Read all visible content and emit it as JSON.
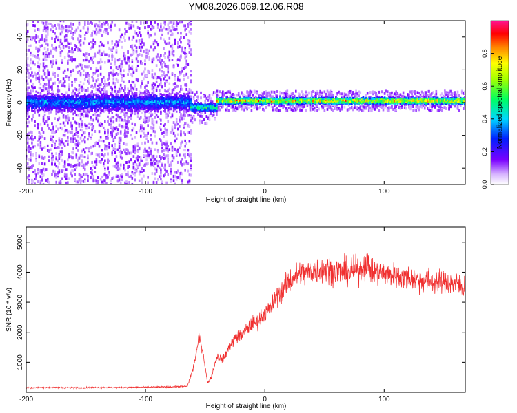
{
  "chart_data": [
    {
      "type": "heatmap",
      "title": "YM08.2026.069.12.06.R08",
      "xlabel": "Height of straight line (km)",
      "ylabel": "Frequency (Hz)",
      "xlim": [
        -200,
        168
      ],
      "ylim": [
        -50,
        50
      ],
      "x_ticks": [
        -200,
        -100,
        0,
        100
      ],
      "y_ticks": [
        -40,
        -20,
        0,
        20,
        40
      ],
      "colorbar": {
        "label": "Normalized spectral amplitude",
        "range": [
          0,
          1
        ],
        "ticks": [
          "0.0",
          "0.2",
          "0.4",
          "0.6",
          "0.8"
        ]
      },
      "regions": [
        {
          "x_range": [
            -200,
            -62
          ],
          "center_freq_hz": 0,
          "core_halfwidth_hz": 8,
          "scatter_halfwidth_hz": 50,
          "peak_amplitude": 0.45
        },
        {
          "x_range": [
            -62,
            -40
          ],
          "center_freq_hz": -3,
          "core_halfwidth_hz": 4,
          "scatter_halfwidth_hz": 10,
          "peak_amplitude": 0.65
        },
        {
          "x_range": [
            -40,
            168
          ],
          "center_freq_hz": 1,
          "core_halfwidth_hz": 3,
          "scatter_halfwidth_hz": 6,
          "peak_amplitude": 0.95
        }
      ]
    },
    {
      "type": "line",
      "xlabel": "Height of straight line (km)",
      "ylabel": "SNR (10 * v/v)",
      "xlim": [
        -200,
        168
      ],
      "ylim": [
        0,
        5500
      ],
      "x_ticks": [
        -200,
        -100,
        0,
        100
      ],
      "y_ticks": [
        1000,
        2000,
        3000,
        4000,
        5000
      ],
      "color": "#f03030",
      "series": [
        {
          "name": "SNR",
          "x": [
            -200,
            -180,
            -160,
            -140,
            -120,
            -100,
            -80,
            -65,
            -60,
            -55,
            -52,
            -48,
            -45,
            -40,
            -35,
            -30,
            -25,
            -20,
            -15,
            -10,
            -5,
            0,
            5,
            10,
            15,
            20,
            25,
            30,
            35,
            40,
            50,
            60,
            70,
            80,
            85,
            90,
            100,
            110,
            120,
            130,
            140,
            150,
            160,
            168
          ],
          "values": [
            150,
            160,
            150,
            160,
            160,
            170,
            180,
            200,
            800,
            1800,
            1400,
            300,
            500,
            1200,
            1100,
            1500,
            1800,
            1900,
            2100,
            2300,
            2400,
            2650,
            2800,
            3200,
            3400,
            3700,
            3850,
            3950,
            4000,
            4050,
            4100,
            4050,
            4000,
            4100,
            4300,
            4000,
            3950,
            3850,
            3800,
            3750,
            3700,
            3650,
            3600,
            3500
          ]
        }
      ]
    }
  ]
}
